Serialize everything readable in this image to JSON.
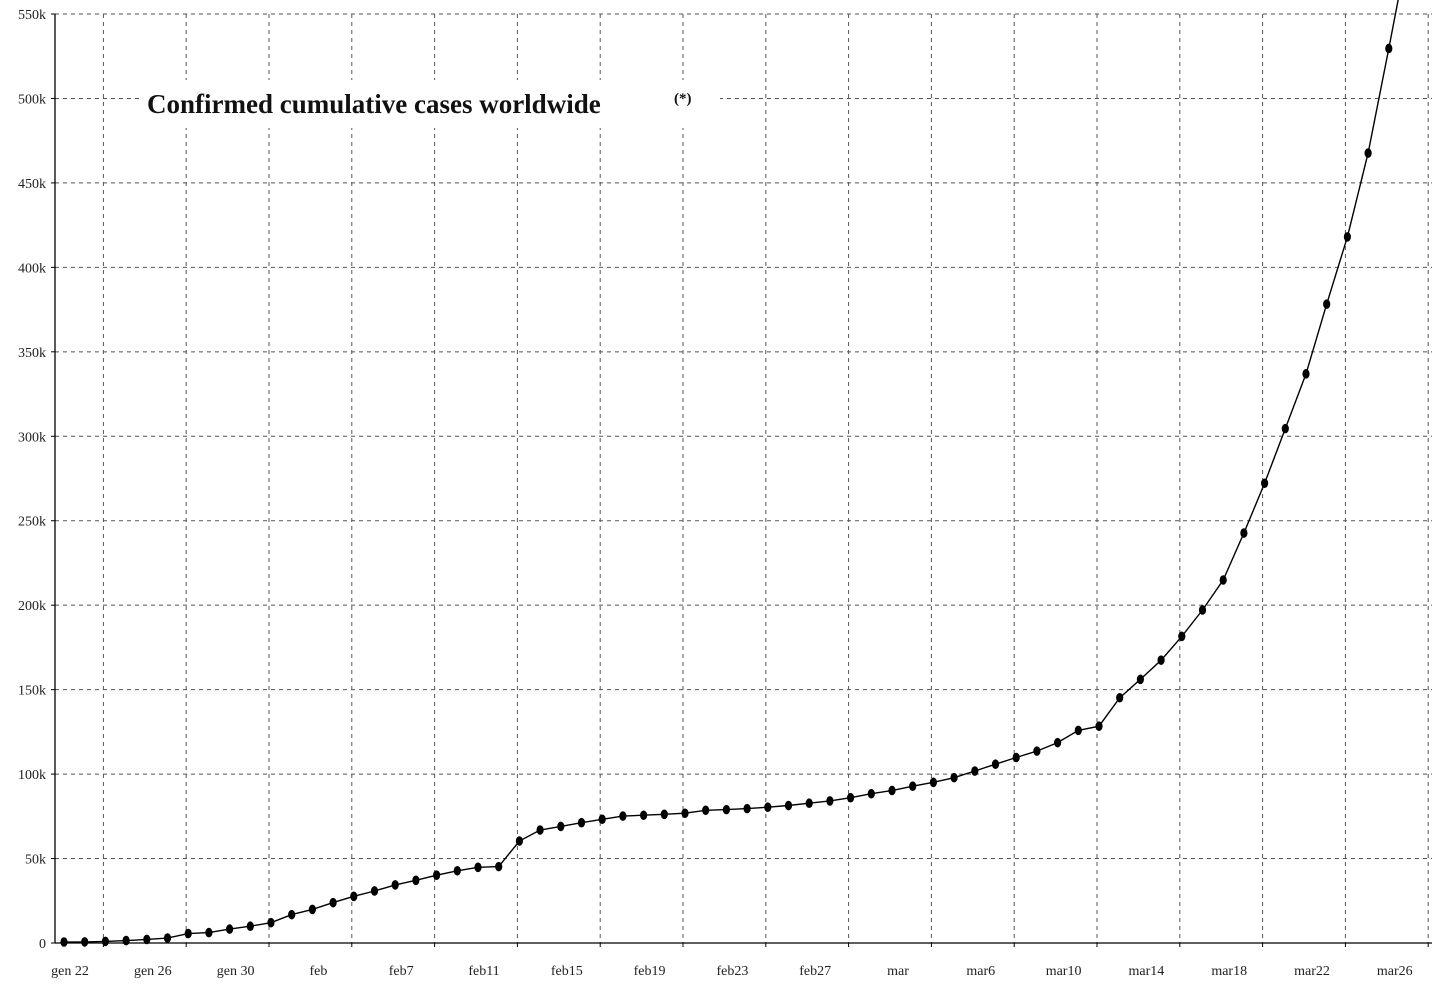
{
  "chart_data": {
    "type": "line",
    "title": "Confirmed cumulative cases worldwide",
    "title_note": "(*)",
    "xlabel": "",
    "ylabel": "",
    "grid": true,
    "ylim": [
      0,
      550000
    ],
    "y_ticks": [
      0,
      50000,
      100000,
      150000,
      200000,
      250000,
      300000,
      350000,
      400000,
      450000,
      500000,
      550000
    ],
    "y_tick_labels": [
      "0",
      "50k",
      "100k",
      "150k",
      "200k",
      "250k",
      "300k",
      "350k",
      "400k",
      "450k",
      "500k",
      "550k"
    ],
    "x_tick_labels": [
      "gen 22",
      "gen 26",
      "gen 30",
      "feb",
      "feb7",
      "feb11",
      "feb15",
      "feb19",
      "feb23",
      "feb27",
      "mar",
      "mar6",
      "mar10",
      "mar14",
      "mar18",
      "mar22",
      "mar26"
    ],
    "x_tick_dates": [
      "2020-01-22",
      "2020-01-26",
      "2020-01-30",
      "2020-02-03",
      "2020-02-07",
      "2020-02-11",
      "2020-02-15",
      "2020-02-19",
      "2020-02-23",
      "2020-02-27",
      "2020-03-02",
      "2020-03-06",
      "2020-03-10",
      "2020-03-14",
      "2020-03-18",
      "2020-03-22",
      "2020-03-26"
    ],
    "series": [
      {
        "x": [
          "2020-01-22",
          "2020-01-23",
          "2020-01-24",
          "2020-01-25",
          "2020-01-26",
          "2020-01-27",
          "2020-01-28",
          "2020-01-29",
          "2020-01-30",
          "2020-01-31",
          "2020-02-01",
          "2020-02-02",
          "2020-02-03",
          "2020-02-04",
          "2020-02-05",
          "2020-02-06",
          "2020-02-07",
          "2020-02-08",
          "2020-02-09",
          "2020-02-10",
          "2020-02-11",
          "2020-02-12",
          "2020-02-13",
          "2020-02-14",
          "2020-02-15",
          "2020-02-16",
          "2020-02-17",
          "2020-02-18",
          "2020-02-19",
          "2020-02-20",
          "2020-02-21",
          "2020-02-22",
          "2020-02-23",
          "2020-02-24",
          "2020-02-25",
          "2020-02-26",
          "2020-02-27",
          "2020-02-28",
          "2020-02-29",
          "2020-03-01",
          "2020-03-02",
          "2020-03-03",
          "2020-03-04",
          "2020-03-05",
          "2020-03-06",
          "2020-03-07",
          "2020-03-08",
          "2020-03-09",
          "2020-03-10",
          "2020-03-11",
          "2020-03-12",
          "2020-03-13",
          "2020-03-14",
          "2020-03-15",
          "2020-03-16",
          "2020-03-17",
          "2020-03-18",
          "2020-03-19",
          "2020-03-20",
          "2020-03-21",
          "2020-03-22",
          "2020-03-23",
          "2020-03-24",
          "2020-03-25",
          "2020-03-26",
          "2020-03-27"
        ],
        "values": [
          555,
          654,
          941,
          1434,
          2118,
          2927,
          5578,
          6166,
          8234,
          9927,
          12038,
          16787,
          19881,
          23892,
          27635,
          30794,
          34391,
          37120,
          40150,
          42762,
          44802,
          45221,
          60368,
          66885,
          69030,
          71224,
          73258,
          75136,
          75639,
          76197,
          76819,
          78572,
          78958,
          79561,
          80406,
          81388,
          82746,
          84112,
          86011,
          88369,
          90306,
          92840,
          95120,
          97886,
          101801,
          105847,
          109821,
          113590,
          118620,
          125875,
          128343,
          145193,
          156097,
          167449,
          181546,
          197168,
          214915,
          242713,
          272167,
          304528,
          336953,
          378235,
          418045,
          467653,
          529591,
          593291
        ]
      }
    ]
  }
}
